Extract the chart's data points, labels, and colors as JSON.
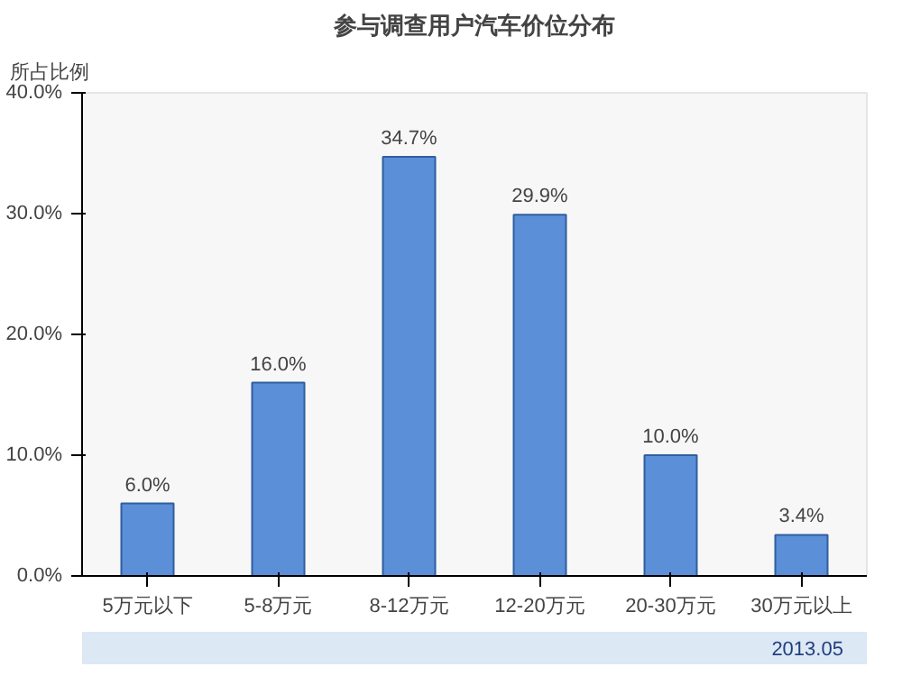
{
  "chart_data": {
    "type": "bar",
    "title": "参与调查用户汽车价位分布",
    "ylabel": "所占比例",
    "categories": [
      "5万元以下",
      "5-8万元",
      "8-12万元",
      "12-20万元",
      "20-30万元",
      "30万元以上"
    ],
    "values": [
      6.0,
      16.0,
      34.7,
      29.9,
      10.0,
      3.4
    ],
    "value_labels": [
      "6.0%",
      "16.0%",
      "34.7%",
      "29.9%",
      "10.0%",
      "3.4%"
    ],
    "color": "#5b8fd8",
    "ylim": [
      0,
      40
    ],
    "yticks": [
      {
        "value": 0,
        "label": "0.0%"
      },
      {
        "value": 10,
        "label": "10.0%"
      },
      {
        "value": 20,
        "label": "20.0%"
      },
      {
        "value": 30,
        "label": "30.0%"
      },
      {
        "value": 40,
        "label": "40.0%"
      }
    ],
    "grid": false,
    "annotations": [
      "2013.05"
    ]
  }
}
